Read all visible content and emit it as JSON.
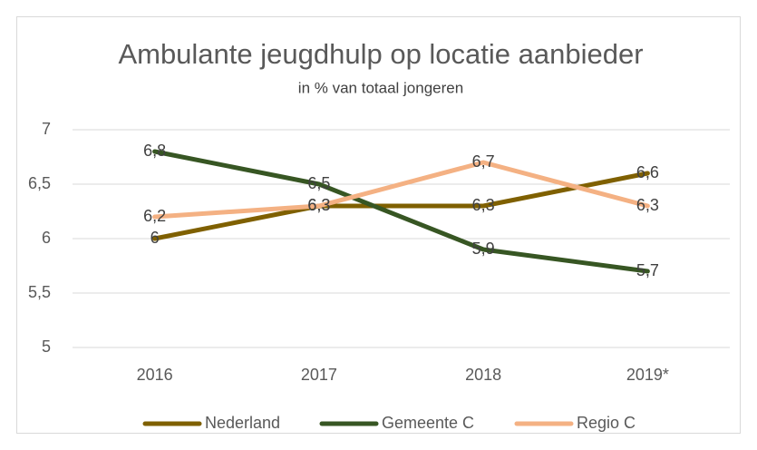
{
  "chart_data": {
    "type": "line",
    "title": "Ambulante jeugdhulp op locatie aanbieder",
    "subtitle": "in % van totaal jongeren",
    "categories": [
      "2016",
      "2017",
      "2018",
      "2019*"
    ],
    "series": [
      {
        "name": "Nederland",
        "color": "#7f6000",
        "values": [
          6,
          6.3,
          6.3,
          6.6
        ],
        "value_labels": [
          "6",
          "6,3",
          "6,3",
          "6,6"
        ]
      },
      {
        "name": "Gemeente C",
        "color": "#375623",
        "values": [
          6.8,
          6.5,
          5.9,
          5.7
        ],
        "value_labels": [
          "6,8",
          "6,5",
          "5,9",
          "5,7"
        ]
      },
      {
        "name": "Regio C",
        "color": "#f4b183",
        "values": [
          6.2,
          6.3,
          6.7,
          6.3
        ],
        "value_labels": [
          "6,2",
          "6,3",
          "6,7",
          "6,3"
        ]
      }
    ],
    "ylim": [
      5,
      7
    ],
    "yticks": [
      5,
      {
        "value": 5.5,
        "label": "5,5"
      },
      6,
      {
        "value": 6.5,
        "label": "6,5"
      },
      7
    ],
    "grid": true,
    "legend": "bottom"
  }
}
